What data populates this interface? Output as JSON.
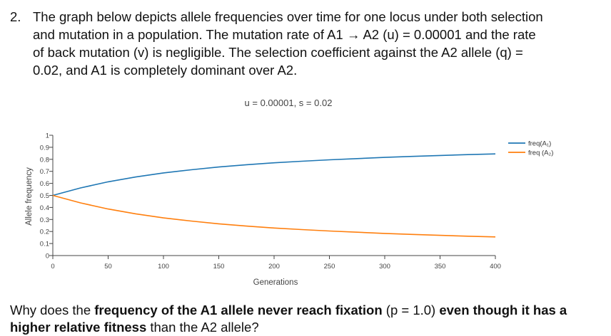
{
  "question": {
    "number": "2.",
    "line1": "The graph below depicts allele frequencies over time for one locus under both selection",
    "line2": "and mutation in a population. The mutation rate of A1 → A2 (u) = 0.00001 and the rate",
    "line3": "of back mutation (v) is negligible. The selection coefficient against the A2 allele (q) =",
    "line4": "0.02, and A1 is completely dominant over A2."
  },
  "followup": {
    "p1": "Why does the ",
    "b1": "frequency of the A1 allele never reach fixation",
    "p2": " (p = 1.0) ",
    "b2": "even though it has a higher relative fitness",
    "p3": " than the A2 allele?"
  },
  "chart_data": {
    "type": "line",
    "title": "u = 0.00001, s = 0.02",
    "xlabel": "Generations",
    "ylabel": "Allele frequency",
    "xlim": [
      0,
      400
    ],
    "ylim": [
      0,
      1
    ],
    "x_ticks": [
      0,
      50,
      100,
      150,
      200,
      250,
      300,
      350,
      400
    ],
    "y_ticks": [
      0,
      0.1,
      0.2,
      0.3,
      0.4,
      0.5,
      0.6,
      0.7,
      0.8,
      0.9,
      1
    ],
    "y_tick_labels": [
      "0",
      "0.1",
      "0.2",
      "0.3",
      "0.4",
      "0.5",
      "0.6",
      "0.7",
      "0.8",
      "0.9",
      "1"
    ],
    "grid": false,
    "legend_position": "top-right",
    "x": [
      0,
      25,
      50,
      75,
      100,
      125,
      150,
      175,
      200,
      225,
      250,
      275,
      300,
      325,
      350,
      375,
      400
    ],
    "series": [
      {
        "name": "freq(A₁)",
        "color": "#1f77b4",
        "values": [
          0.5,
          0.562,
          0.613,
          0.653,
          0.687,
          0.713,
          0.736,
          0.755,
          0.771,
          0.784,
          0.796,
          0.806,
          0.816,
          0.824,
          0.832,
          0.839,
          0.845
        ]
      },
      {
        "name": "freq (A₂)",
        "color": "#ff7f0e",
        "values": [
          0.5,
          0.438,
          0.387,
          0.347,
          0.313,
          0.287,
          0.264,
          0.245,
          0.229,
          0.216,
          0.204,
          0.194,
          0.184,
          0.176,
          0.168,
          0.161,
          0.155
        ]
      }
    ]
  }
}
